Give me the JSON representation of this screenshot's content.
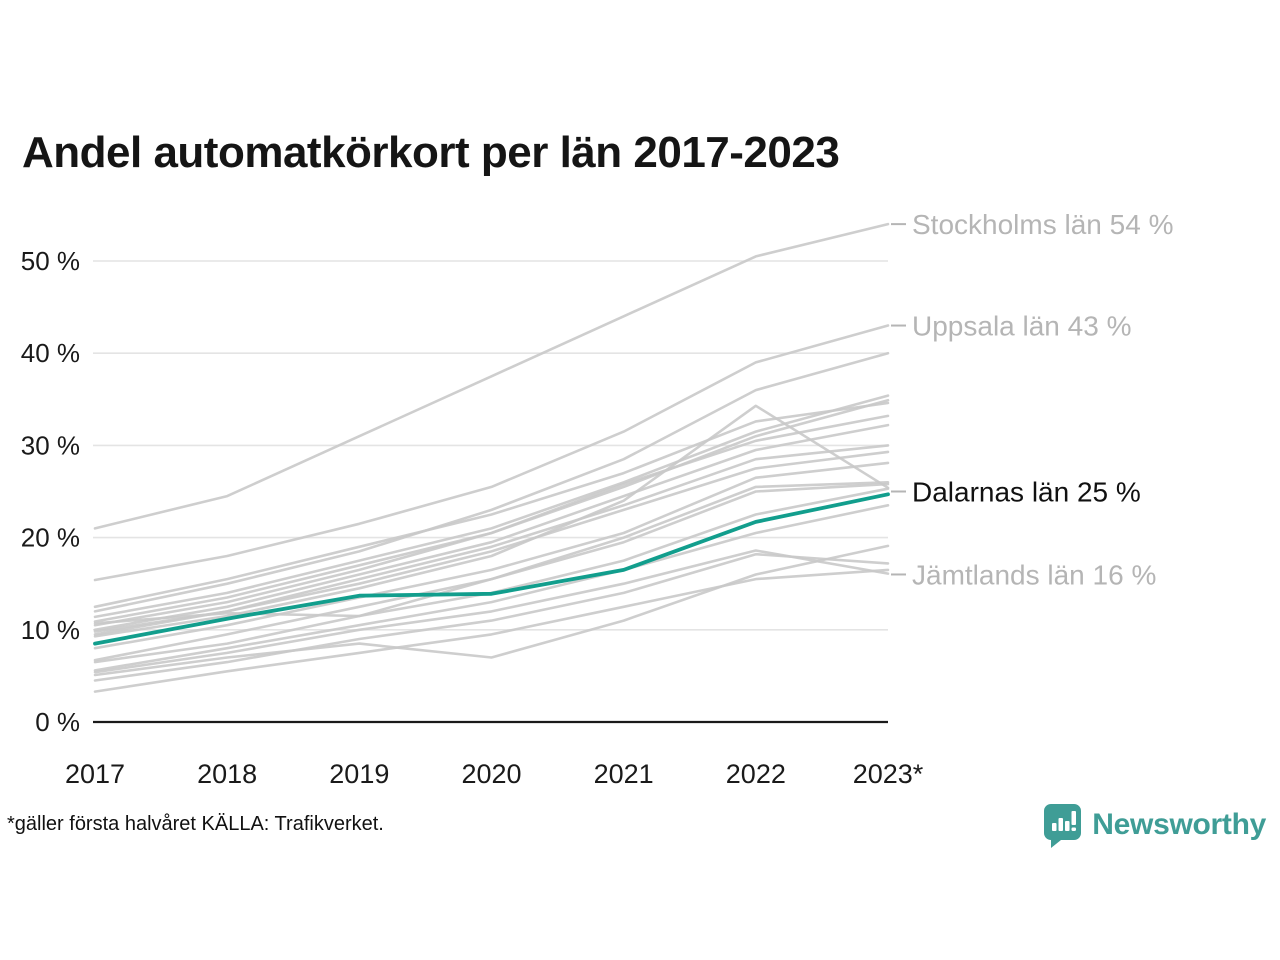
{
  "title": "Andel automatkörkort per län 2017-2023",
  "footnote": "*gäller första halvåret KÄLLA: Trafikverket.",
  "logo": {
    "text": "Newsworthy",
    "icon": "speech-bubble-bar-chart"
  },
  "colors": {
    "highlight": "#129e8d",
    "line_gray": "#c9c9c9",
    "grid": "#e4e4e4",
    "axis": "#1a1a1a",
    "tick_text": "#1a1a1a",
    "muted_label": "#b5b5b5",
    "dark_label": "#111111",
    "logo_teal": "#3f9d96"
  },
  "chart_data": {
    "type": "line",
    "title": "Andel automatkörkort per län 2017-2023",
    "xlabel": "",
    "ylabel": "",
    "x": [
      2017,
      2018,
      2019,
      2020,
      2021,
      2022,
      2023
    ],
    "x_tick_labels": [
      "2017",
      "2018",
      "2019",
      "2020",
      "2021",
      "2022",
      "2023*"
    ],
    "yticks": [
      0,
      10,
      20,
      30,
      40,
      50
    ],
    "ytick_suffix": " %",
    "ylim": [
      0,
      56
    ],
    "grid": "horizontal",
    "legend_position": "right-edge-labels",
    "series": [
      {
        "name": "Stockholms län",
        "values": [
          21,
          24.5,
          31,
          37.5,
          44,
          50.5,
          54
        ],
        "label": "Stockholms län 54 %",
        "label_value": 54,
        "label_style": "muted",
        "highlight": false
      },
      {
        "name": "Uppsala län",
        "values": [
          15.4,
          18,
          21.5,
          25.5,
          31.5,
          39,
          43
        ],
        "label": "Uppsala län 43 %",
        "label_value": 43,
        "label_style": "muted",
        "highlight": false
      },
      {
        "name": "",
        "values": [
          12,
          15,
          18.5,
          23,
          28.5,
          36,
          40
        ],
        "label": null,
        "highlight": false
      },
      {
        "name": "",
        "values": [
          11.4,
          14,
          17.5,
          21,
          26,
          31.5,
          35.4
        ],
        "label": null,
        "highlight": false
      },
      {
        "name": "",
        "values": [
          10.5,
          13,
          16.5,
          20.5,
          25.5,
          31,
          34.9
        ],
        "label": null,
        "highlight": false
      },
      {
        "name": "",
        "values": [
          12.5,
          15.5,
          19,
          22.5,
          27,
          32.6,
          34.6
        ],
        "label": null,
        "highlight": false
      },
      {
        "name": "",
        "values": [
          10.9,
          13.5,
          17,
          20.5,
          25.8,
          30.5,
          33.2
        ],
        "label": null,
        "highlight": false
      },
      {
        "name": "",
        "values": [
          10,
          12.5,
          16,
          19.5,
          24.5,
          29.5,
          32.2
        ],
        "label": null,
        "highlight": false
      },
      {
        "name": "",
        "values": [
          9.8,
          12,
          15.5,
          19,
          23.5,
          28.5,
          30
        ],
        "label": null,
        "highlight": false
      },
      {
        "name": "",
        "values": [
          9.5,
          12,
          15,
          18.5,
          23,
          27.5,
          29.3
        ],
        "label": null,
        "highlight": false
      },
      {
        "name": "",
        "values": [
          9.3,
          11.5,
          14.5,
          18,
          24,
          34.3,
          25.4
        ],
        "label": null,
        "highlight": false
      },
      {
        "name": "",
        "values": [
          8,
          10.5,
          13.5,
          16.5,
          20.5,
          26.5,
          28.1
        ],
        "label": null,
        "highlight": false
      },
      {
        "name": "",
        "values": [
          6.7,
          9.5,
          12.5,
          15.5,
          20,
          25.5,
          26
        ],
        "label": null,
        "highlight": false
      },
      {
        "name": "",
        "values": [
          10.7,
          11.8,
          11.5,
          15.5,
          19.5,
          25,
          25.8
        ],
        "label": null,
        "highlight": false
      },
      {
        "name": "",
        "values": [
          6.5,
          8.5,
          11.5,
          14,
          17.5,
          22.5,
          25.3
        ],
        "label": null,
        "highlight": false
      },
      {
        "name": "Dalarnas län",
        "values": [
          8.5,
          11.2,
          13.7,
          13.9,
          16.5,
          21.7,
          24.7
        ],
        "label": "Dalarnas län 25 %",
        "label_value": 25,
        "label_style": "dark",
        "highlight": true
      },
      {
        "name": "",
        "values": [
          5.6,
          8,
          10.5,
          13,
          16.5,
          20.5,
          23.5
        ],
        "label": null,
        "highlight": false
      },
      {
        "name": "",
        "values": [
          5.1,
          7,
          8.5,
          7,
          11,
          16,
          19.1
        ],
        "label": null,
        "highlight": false
      },
      {
        "name": "",
        "values": [
          4.5,
          6.5,
          9,
          11,
          14,
          18.2,
          17.2
        ],
        "label": null,
        "highlight": false
      },
      {
        "name": "Jämtlands län",
        "values": [
          5.4,
          7.5,
          10,
          12,
          15,
          18.6,
          16.1
        ],
        "label": "Jämtlands län 16 %",
        "label_value": 16,
        "label_style": "muted",
        "highlight": false
      },
      {
        "name": "",
        "values": [
          3.3,
          5.5,
          7.5,
          9.5,
          12.5,
          15.5,
          16.5
        ],
        "label": null,
        "highlight": false
      }
    ]
  }
}
